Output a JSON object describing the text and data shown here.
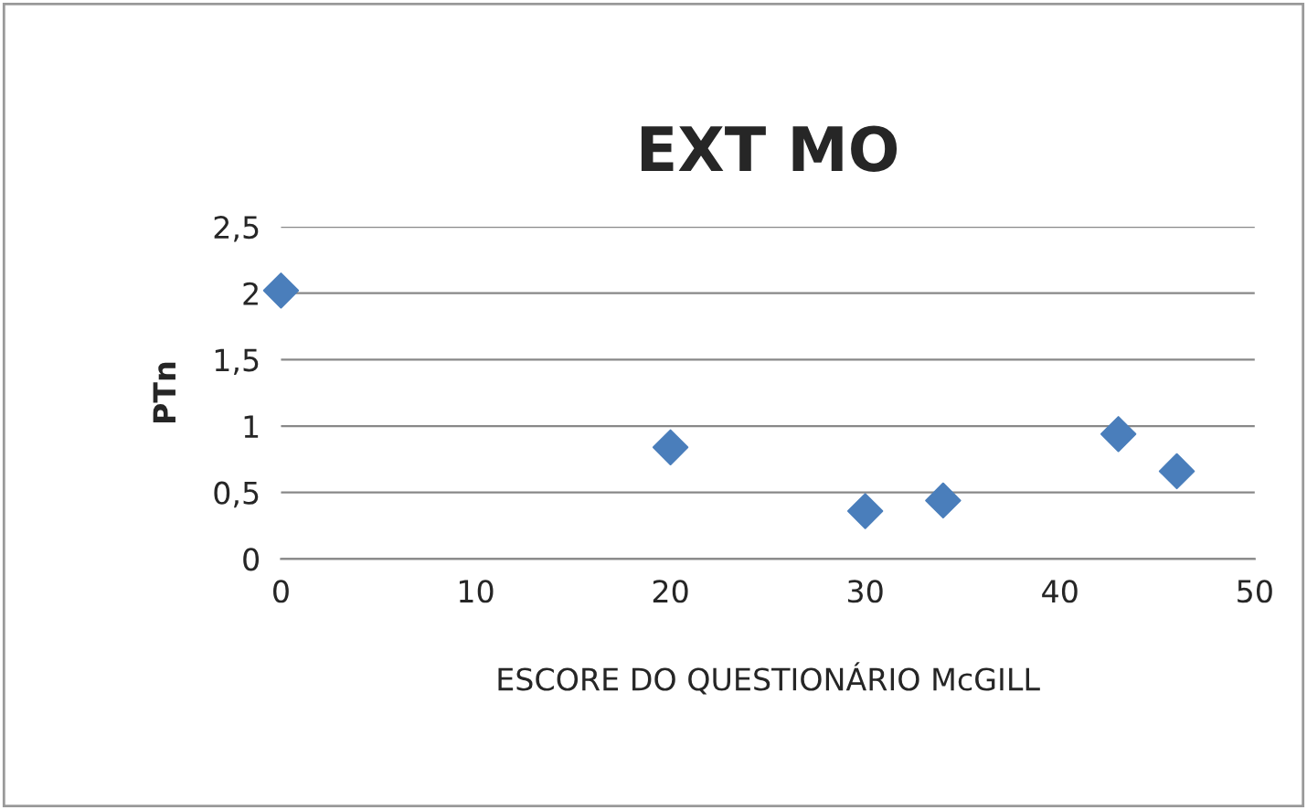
{
  "chart_data": {
    "type": "scatter",
    "title": "EXT MO",
    "xlabel": "ESCORE DO QUESTIONÁRIO McGILL",
    "ylabel": "PTn",
    "x": [
      0,
      20,
      30,
      34,
      43,
      46
    ],
    "values": [
      2.02,
      0.84,
      0.36,
      0.44,
      0.94,
      0.66
    ],
    "color": "#4a7ebb",
    "marker": "diamond",
    "xlim": [
      0,
      50
    ],
    "xticks": [
      0,
      10,
      20,
      30,
      40,
      50
    ],
    "ylim": [
      0,
      2.5
    ],
    "yticks": [
      {
        "value": 0,
        "label": "0"
      },
      {
        "value": 0.5,
        "label": "0,5"
      },
      {
        "value": 1,
        "label": "1"
      },
      {
        "value": 1.5,
        "label": "1,5"
      },
      {
        "value": 2,
        "label": "2"
      },
      {
        "value": 2.5,
        "label": "2,5"
      }
    ],
    "grid": "y",
    "legend": false
  }
}
